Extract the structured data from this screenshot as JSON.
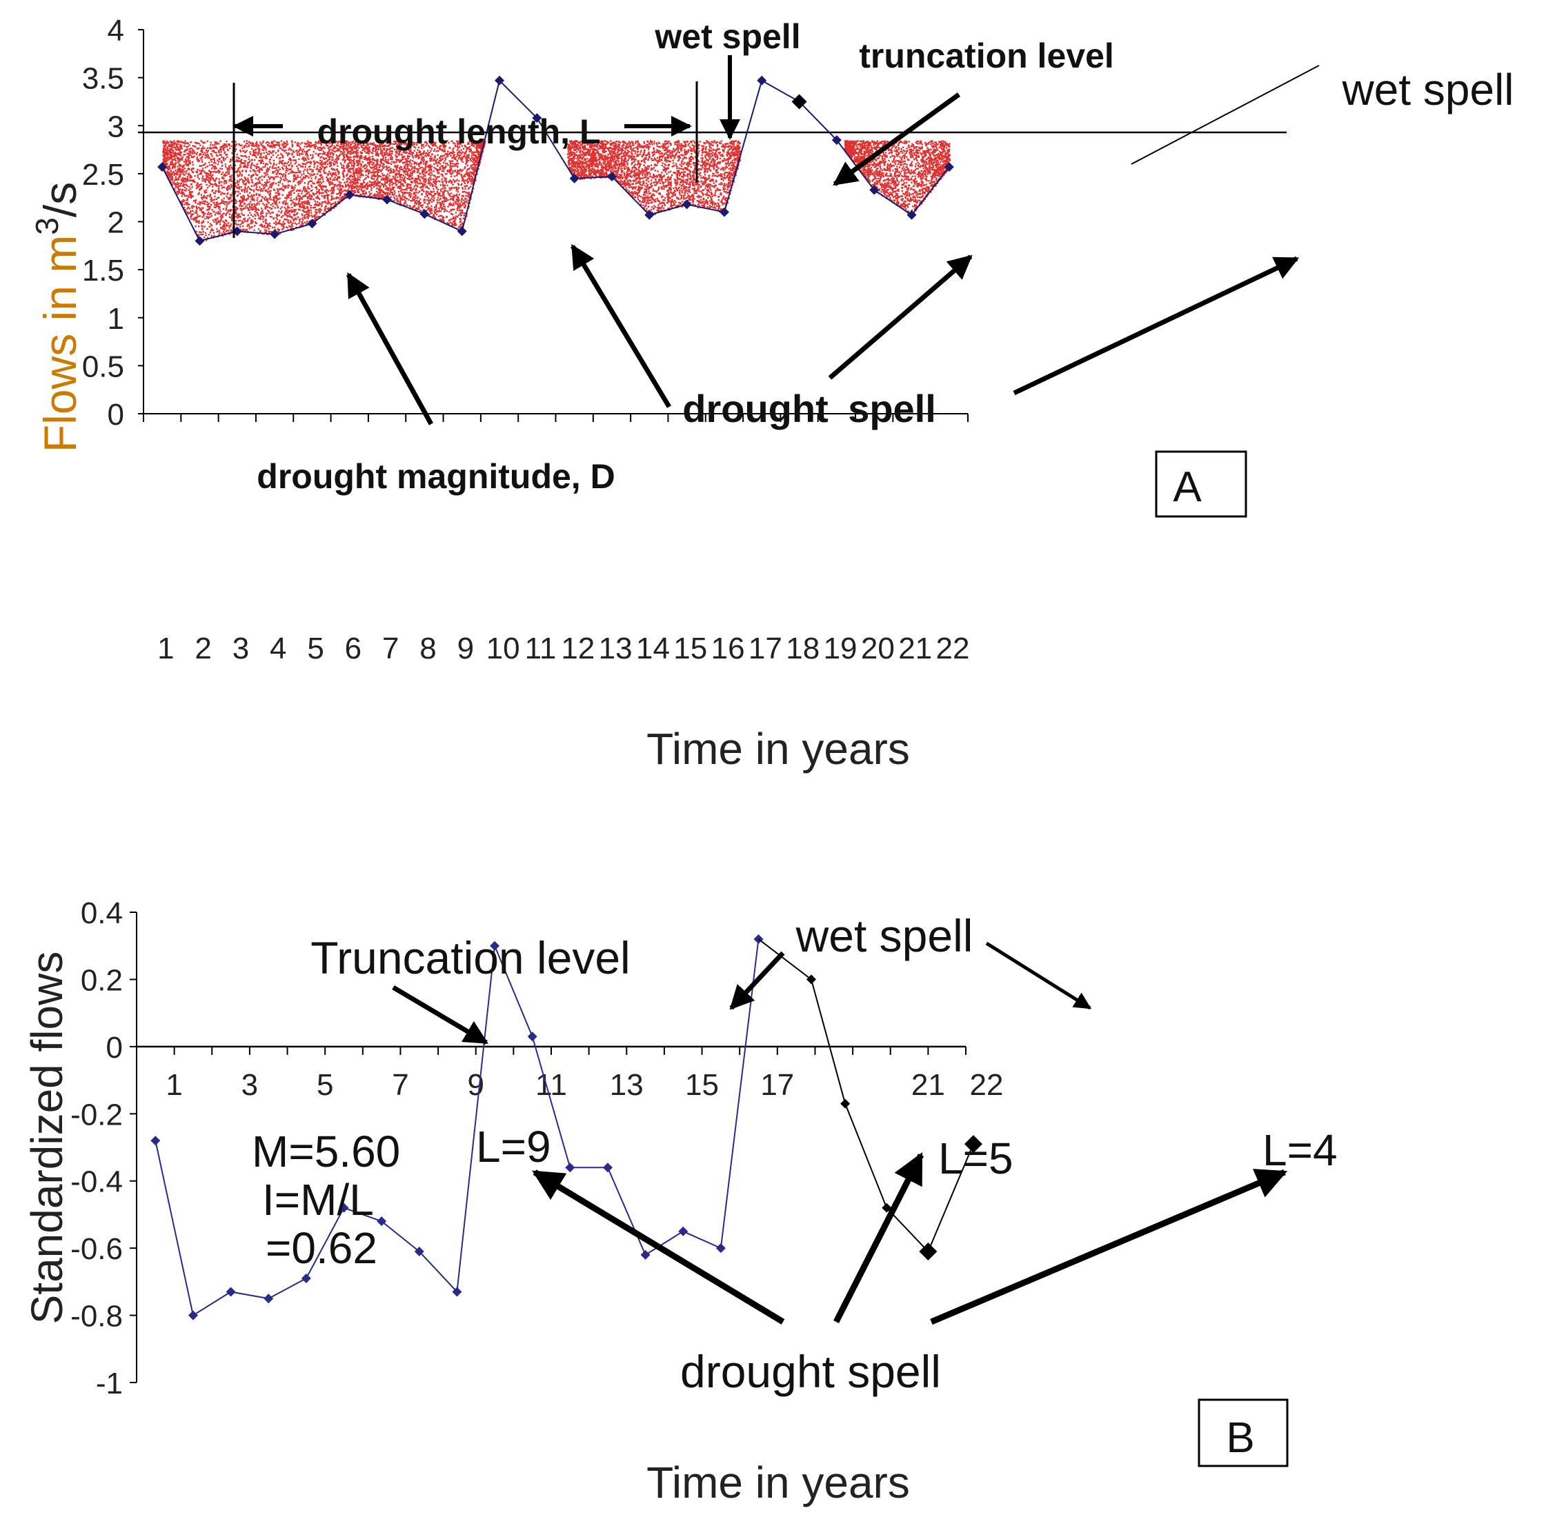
{
  "chart_data": [
    {
      "panel": "A",
      "type": "line",
      "xlabel": "Time in years",
      "ylabel_main": "Flows in m",
      "ylabel_sup": "3",
      "ylabel_tail": "/s",
      "ylim": [
        0,
        4
      ],
      "xlim": [
        0,
        22
      ],
      "yticks": [
        "0",
        "0.5",
        "1",
        "1.5",
        "2",
        "2.5",
        "3",
        "3.5",
        "4"
      ],
      "yticks_values": [
        0,
        0.5,
        1,
        1.5,
        2,
        2.5,
        3,
        3.5,
        4
      ],
      "xticks": [
        "1",
        "2",
        "3",
        "4",
        "5",
        "6",
        "7",
        "8",
        "9",
        "10",
        "11",
        "12",
        "13",
        "14",
        "15",
        "16",
        "17",
        "18",
        "19",
        "20",
        "21",
        "22"
      ],
      "truncation_level": 2.93,
      "series": [
        {
          "name": "flows",
          "color": "#1a1a6e",
          "x": [
            0.5,
            1.5,
            2.5,
            3.5,
            4.5,
            5.5,
            6.5,
            7.5,
            8.5,
            9.5,
            10.5,
            11.5,
            12.5,
            13.5,
            14.5,
            15.5,
            16.5,
            17.5,
            18.5,
            19.5,
            20.5,
            21.5
          ],
          "y": [
            2.57,
            1.8,
            1.9,
            1.87,
            1.98,
            2.28,
            2.23,
            2.08,
            1.9,
            3.47,
            3.08,
            2.45,
            2.47,
            2.07,
            2.18,
            2.1,
            3.47,
            3.25,
            2.85,
            2.33,
            2.07,
            2.57
          ]
        }
      ],
      "annotations": {
        "drought_length": "drought length, L",
        "wet_spell_top": "wet spell",
        "truncation_level": "truncation level",
        "wet_spell_right": "wet spell",
        "drought_magnitude": "drought magnitude, D",
        "drought_spell_word1": "drought",
        "drought_spell_word2": "spell",
        "panel_label": "A"
      }
    },
    {
      "panel": "B",
      "type": "line",
      "xlabel": "Time in years",
      "ylabel": "Standardized flows",
      "ylim": [
        -1,
        0.4
      ],
      "xlim": [
        0,
        22
      ],
      "yticks": [
        "0.4",
        "0.2",
        "0",
        "-0.2",
        "-0.4",
        "-0.6",
        "-0.8",
        "-1"
      ],
      "yticks_values": [
        0.4,
        0.2,
        0,
        -0.2,
        -0.4,
        -0.6,
        -0.8,
        -1
      ],
      "xticks": [
        "1",
        "3",
        "5",
        "7",
        "9",
        "11",
        "13",
        "15",
        "17",
        "21",
        "22"
      ],
      "xticks_values": [
        1,
        3,
        5,
        7,
        9,
        11,
        13,
        15,
        17,
        21,
        22
      ],
      "truncation_level": 0,
      "series": [
        {
          "name": "standardized flows (blue)",
          "color": "#2a2a8a",
          "x": [
            0.5,
            1.5,
            2.5,
            3.5,
            4.5,
            5.5,
            6.5,
            7.5,
            8.5,
            9.5,
            10.5,
            11.5,
            12.5,
            13.5,
            14.5,
            15.5,
            16.5
          ],
          "y": [
            -0.28,
            -0.8,
            -0.73,
            -0.75,
            -0.69,
            -0.48,
            -0.52,
            -0.61,
            -0.73,
            0.3,
            0.03,
            -0.36,
            -0.36,
            -0.62,
            -0.55,
            -0.6,
            0.32
          ]
        },
        {
          "name": "standardized flows (black)",
          "color": "#000000",
          "x": [
            16.5,
            17.9,
            18.8,
            19.9,
            21.0,
            22.2
          ],
          "y": [
            0.32,
            0.2,
            -0.17,
            -0.48,
            -0.61,
            -0.29
          ]
        }
      ],
      "annotations": {
        "truncation_level": "Truncation level",
        "wet_spell": "wet spell",
        "m_value": "M=5.60",
        "i_formula": "I=M/L",
        "i_value": "=0.62",
        "l9": "L=9",
        "l5": "L=5",
        "l4": "L=4",
        "drought_spell": "drought spell",
        "panel_label": "B"
      }
    }
  ]
}
